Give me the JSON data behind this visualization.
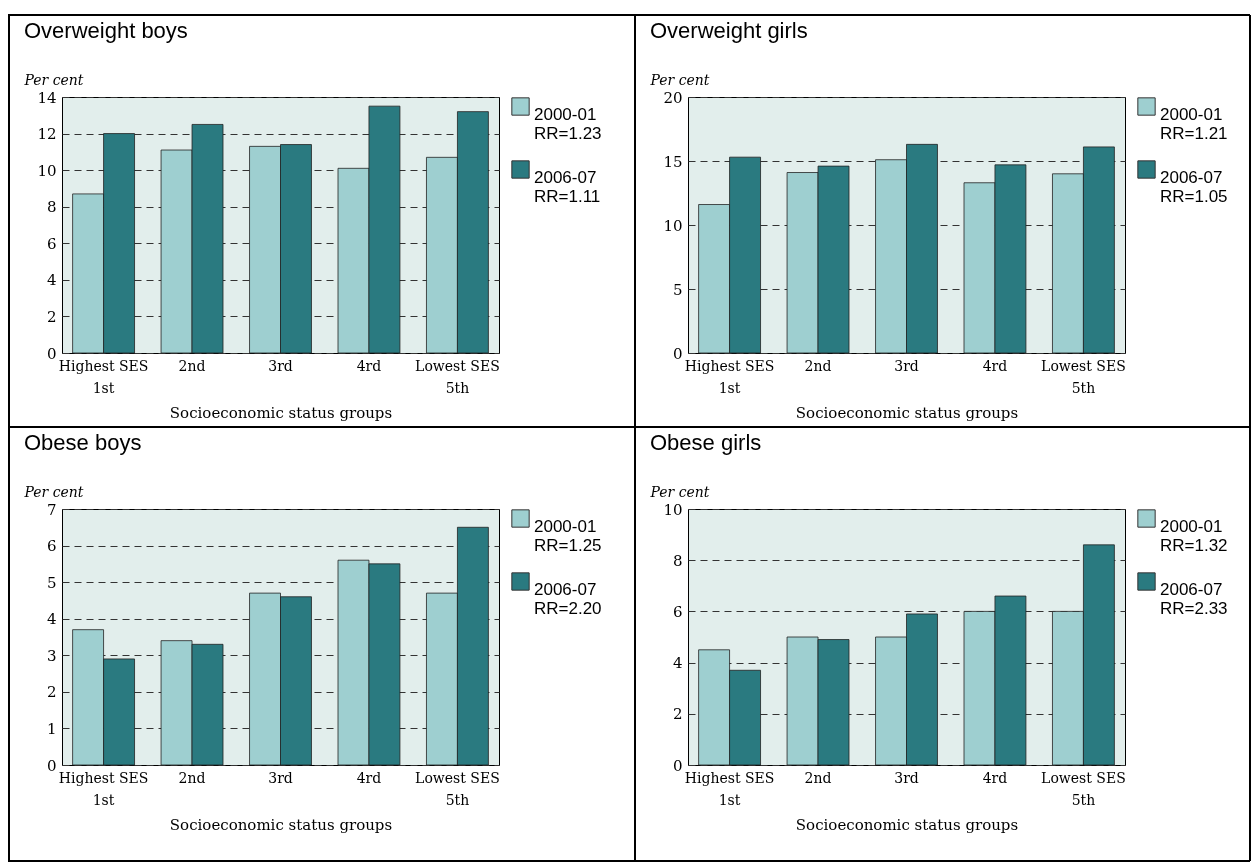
{
  "chart_data": [
    {
      "type": "bar",
      "title": "Overweight boys",
      "ylabel": "Per cent",
      "xlabel": "Socioeconomic status groups",
      "categories": [
        "Highest SES\n1st",
        "2nd",
        "3rd",
        "4rd",
        "Lowest SES\n5th"
      ],
      "series": [
        {
          "name": "2000-01",
          "color": "#9ecfd0",
          "values": [
            8.7,
            11.1,
            11.3,
            10.1,
            10.7
          ]
        },
        {
          "name": "2006-07",
          "color": "#2a7a80",
          "values": [
            12.0,
            12.5,
            11.4,
            13.5,
            13.2
          ]
        }
      ],
      "annotations": [
        "RR=1.23",
        "RR=1.11"
      ],
      "ylim": [
        0,
        14
      ],
      "yticks": [
        0,
        2,
        4,
        6,
        8,
        10,
        12,
        14
      ],
      "grid": "y",
      "legend": "right"
    },
    {
      "type": "bar",
      "title": "Overweight girls",
      "ylabel": "Per cent",
      "xlabel": "Socioeconomic status groups",
      "categories": [
        "Highest SES\n1st",
        "2nd",
        "3rd",
        "4rd",
        "Lowest SES\n5th"
      ],
      "series": [
        {
          "name": "2000-01",
          "color": "#9ecfd0",
          "values": [
            11.6,
            14.1,
            15.1,
            13.3,
            14.0
          ]
        },
        {
          "name": "2006-07",
          "color": "#2a7a80",
          "values": [
            15.3,
            14.6,
            16.3,
            14.7,
            16.1
          ]
        }
      ],
      "annotations": [
        "RR=1.21",
        "RR=1.05"
      ],
      "ylim": [
        0,
        20
      ],
      "yticks": [
        0,
        5,
        10,
        15,
        20
      ],
      "grid": "y",
      "legend": "right"
    },
    {
      "type": "bar",
      "title": "Obese boys",
      "ylabel": "Per cent",
      "xlabel": "Socioeconomic status groups",
      "categories": [
        "Highest SES\n1st",
        "2nd",
        "3rd",
        "4rd",
        "Lowest SES\n5th"
      ],
      "series": [
        {
          "name": "2000-01",
          "color": "#9ecfd0",
          "values": [
            3.7,
            3.4,
            4.7,
            5.6,
            4.7
          ]
        },
        {
          "name": "2006-07",
          "color": "#2a7a80",
          "values": [
            2.9,
            3.3,
            4.6,
            5.5,
            6.5
          ]
        }
      ],
      "annotations": [
        "RR=1.25",
        "RR=2.20"
      ],
      "ylim": [
        0,
        7
      ],
      "yticks": [
        0,
        1,
        2,
        3,
        4,
        5,
        6,
        7
      ],
      "grid": "y",
      "legend": "right"
    },
    {
      "type": "bar",
      "title": "Obese girls",
      "ylabel": "Per cent",
      "xlabel": "Socioeconomic status groups",
      "categories": [
        "Highest SES\n1st",
        "2nd",
        "3rd",
        "4rd",
        "Lowest SES\n5th"
      ],
      "series": [
        {
          "name": "2000-01",
          "color": "#9ecfd0",
          "values": [
            4.5,
            5.0,
            5.0,
            6.0,
            6.0
          ]
        },
        {
          "name": "2006-07",
          "color": "#2a7a80",
          "values": [
            3.7,
            4.9,
            5.9,
            6.6,
            8.6
          ]
        }
      ],
      "annotations": [
        "RR=1.32",
        "RR=2.33"
      ],
      "ylim": [
        0,
        10
      ],
      "yticks": [
        0,
        2,
        4,
        6,
        8,
        10
      ],
      "grid": "y",
      "legend": "right"
    }
  ]
}
